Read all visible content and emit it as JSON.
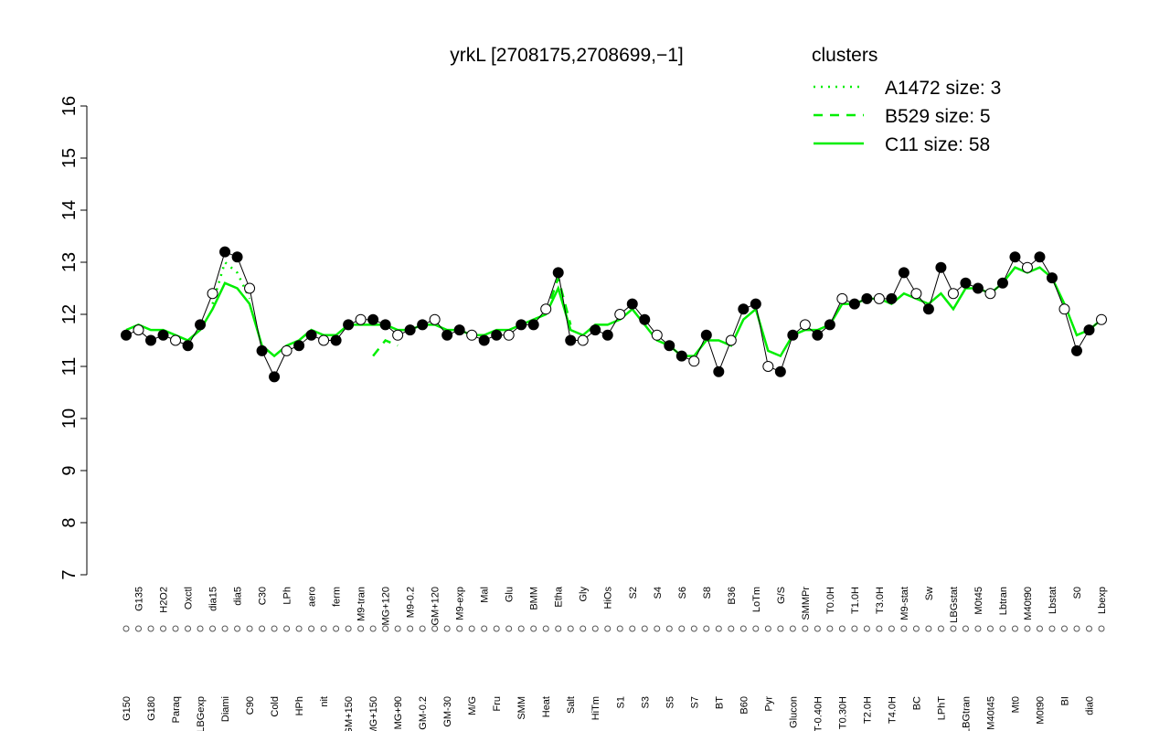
{
  "chart_data": {
    "type": "line",
    "title": "yrkL [2708175,2708699,−1]",
    "legend_title": "clusters",
    "legend_color": "#00ee00",
    "point_color": "#000000",
    "ylim": [
      7,
      16
    ],
    "yticks": [
      7,
      8,
      9,
      10,
      11,
      12,
      13,
      14,
      15,
      16
    ],
    "categories": [
      "G150",
      "G135",
      "G180",
      "H2O2",
      "Paraq",
      "Oxctl",
      "LBGexp",
      "dia15",
      "Diami",
      "dia5",
      "C90",
      "C30",
      "Cold",
      "LPh",
      "HPh",
      "aero",
      "nit",
      "ferm",
      "GM+150",
      "M9-tran",
      "MG+150",
      "MG+120",
      "MG+90",
      "M9-0.2",
      "GM-0.2",
      "GM+120",
      "GM-30",
      "M9-exp",
      "M/G",
      "Mal",
      "Fru",
      "Glu",
      "SMM",
      "BMM",
      "Heat",
      "Etha",
      "Salt",
      "Gly",
      "HiTm",
      "HiOs",
      "S1",
      "S2",
      "S3",
      "S4",
      "S5",
      "S6",
      "S7",
      "S8",
      "BT",
      "B36",
      "B60",
      "LoTm",
      "Pyr",
      "G/S",
      "Glucon",
      "SMMPr",
      "T-0.40H",
      "T0.0H",
      "T0.30H",
      "T1.0H",
      "T2.0H",
      "T3.0H",
      "T4.0H",
      "M9-stat",
      "BC",
      "Sw",
      "LPhT",
      "LBGstat",
      "LBGtran",
      "M0t45",
      "M40t45",
      "Lbtran",
      "Mt0",
      "M40t90",
      "M0t90",
      "Lbstat",
      "BI",
      "S0",
      "dia0",
      "Lbexp"
    ],
    "values": [
      11.6,
      11.7,
      11.5,
      11.6,
      11.5,
      11.4,
      11.8,
      12.4,
      13.2,
      13.1,
      12.5,
      11.3,
      10.8,
      11.3,
      11.4,
      11.6,
      11.5,
      11.5,
      11.8,
      11.9,
      11.9,
      11.8,
      11.6,
      11.7,
      11.8,
      11.9,
      11.6,
      11.7,
      11.6,
      11.5,
      11.6,
      11.6,
      11.8,
      11.8,
      12.1,
      12.8,
      11.5,
      11.5,
      11.7,
      11.6,
      12.0,
      12.2,
      11.9,
      11.6,
      11.4,
      11.2,
      11.1,
      11.6,
      10.9,
      11.5,
      12.1,
      12.2,
      11.0,
      10.9,
      11.6,
      11.8,
      11.6,
      11.8,
      12.3,
      12.2,
      12.3,
      12.3,
      12.3,
      12.8,
      12.4,
      12.1,
      12.9,
      12.4,
      12.6,
      12.5,
      12.4,
      12.6,
      13.1,
      12.9,
      13.1,
      12.7,
      12.1,
      11.3,
      11.7,
      11.9
    ],
    "series": [
      {
        "name": "A1472 size: 3",
        "color": "#00ee00",
        "style": "dotted",
        "values": [
          null,
          null,
          null,
          null,
          null,
          null,
          null,
          12.2,
          13.0,
          12.8,
          12.3,
          null,
          null,
          null,
          null,
          null,
          null,
          null,
          null,
          null,
          null,
          null,
          null,
          null,
          null,
          null,
          null,
          null,
          null,
          null,
          null,
          null,
          null,
          null,
          null,
          null,
          null,
          null,
          null,
          null,
          null,
          null,
          null,
          null,
          null,
          null,
          null,
          null,
          null,
          null,
          null,
          null,
          null,
          null,
          null,
          null,
          null,
          null,
          null,
          null,
          null,
          null,
          null,
          null,
          null,
          null,
          null,
          null,
          null,
          null,
          null,
          null,
          null,
          null,
          null,
          null,
          null,
          null,
          null,
          null
        ]
      },
      {
        "name": "B529 size: 5",
        "color": "#00ee00",
        "style": "dashed",
        "values": [
          null,
          null,
          null,
          null,
          null,
          null,
          null,
          null,
          null,
          null,
          null,
          null,
          null,
          null,
          null,
          null,
          null,
          null,
          null,
          null,
          11.2,
          11.5,
          11.4,
          null,
          null,
          null,
          null,
          null,
          null,
          null,
          null,
          null,
          null,
          null,
          12.0,
          12.7,
          11.8,
          null,
          null,
          null,
          null,
          null,
          null,
          null,
          null,
          null,
          null,
          null,
          null,
          null,
          null,
          null,
          null,
          null,
          null,
          null,
          null,
          null,
          null,
          null,
          null,
          null,
          null,
          null,
          null,
          null,
          null,
          null,
          null,
          null,
          null,
          null,
          null,
          null,
          null,
          null,
          null,
          null,
          null,
          null
        ]
      },
      {
        "name": "C11 size: 58",
        "color": "#00ee00",
        "style": "solid",
        "values": [
          11.7,
          11.8,
          11.7,
          11.7,
          11.6,
          11.5,
          11.7,
          12.1,
          12.6,
          12.5,
          12.2,
          11.4,
          11.2,
          11.4,
          11.5,
          11.7,
          11.6,
          11.6,
          11.8,
          11.8,
          11.8,
          11.8,
          11.7,
          11.7,
          11.8,
          11.8,
          11.7,
          11.7,
          11.6,
          11.6,
          11.7,
          11.7,
          11.8,
          11.9,
          12.0,
          12.5,
          11.7,
          11.6,
          11.8,
          11.8,
          11.9,
          12.1,
          11.8,
          11.5,
          11.4,
          11.2,
          11.2,
          11.5,
          11.5,
          11.4,
          11.9,
          12.1,
          11.3,
          11.2,
          11.6,
          11.7,
          11.7,
          11.8,
          12.2,
          12.2,
          12.3,
          12.3,
          12.2,
          12.4,
          12.3,
          12.2,
          12.4,
          12.1,
          12.5,
          12.5,
          12.4,
          12.6,
          12.9,
          12.8,
          12.9,
          12.7,
          12.2,
          11.6,
          11.7,
          11.9
        ]
      }
    ]
  }
}
